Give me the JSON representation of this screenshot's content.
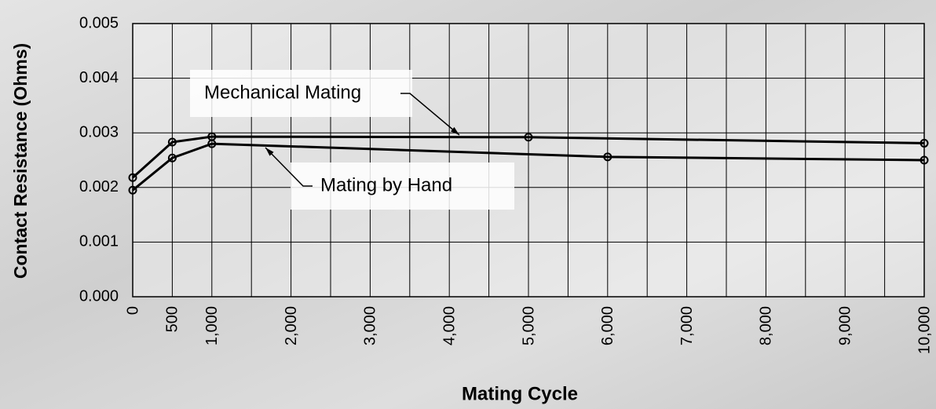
{
  "chart_data": {
    "type": "line",
    "x_label": "Mating Cycle",
    "y_label": "Contact Resistance (Ohms)",
    "xlim": [
      0,
      10000
    ],
    "ylim": [
      0,
      0.005
    ],
    "xticks": [
      0,
      500,
      {
        "value": 1000,
        "label": "1,000"
      },
      {
        "value": 2000,
        "label": "2,000"
      },
      {
        "value": 3000,
        "label": "3,000"
      },
      {
        "value": 4000,
        "label": "4,000"
      },
      {
        "value": 5000,
        "label": "5,000"
      },
      {
        "value": 6000,
        "label": "6,000"
      },
      {
        "value": 7000,
        "label": "7,000"
      },
      {
        "value": 8000,
        "label": "8,000"
      },
      {
        "value": 9000,
        "label": "9,000"
      },
      {
        "value": 10000,
        "label": "10,000"
      }
    ],
    "x_minor_ticks": [
      1500,
      2500,
      3500,
      4500,
      5500,
      6500,
      7500,
      8500,
      9500
    ],
    "yticks": [
      {
        "value": 0,
        "label": "0.000"
      },
      {
        "value": 0.001,
        "label": "0.001"
      },
      {
        "value": 0.002,
        "label": "0.002"
      },
      {
        "value": 0.003,
        "label": "0.003"
      },
      {
        "value": 0.004,
        "label": "0.004"
      },
      {
        "value": 0.005,
        "label": "0.005"
      }
    ],
    "grid": true,
    "series": [
      {
        "name": "Mechanical Mating",
        "color": "#000000",
        "x": [
          0,
          500,
          1000,
          5000,
          10000
        ],
        "values": [
          0.00218,
          0.00283,
          0.00293,
          0.00292,
          0.00281
        ]
      },
      {
        "name": "Mating by Hand",
        "color": "#000000",
        "x": [
          0,
          500,
          1000,
          6000,
          10000
        ],
        "values": [
          0.00195,
          0.00254,
          0.0028,
          0.00256,
          0.0025
        ]
      }
    ]
  }
}
